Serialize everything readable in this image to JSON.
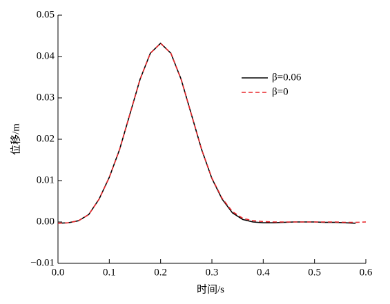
{
  "chart_data": {
    "type": "line",
    "xlabel": "时间/s",
    "ylabel": "位移/m",
    "x": [
      0,
      0.02,
      0.04,
      0.06,
      0.08,
      0.1,
      0.12,
      0.14,
      0.16,
      0.18,
      0.2,
      0.22,
      0.24,
      0.26,
      0.28,
      0.3,
      0.32,
      0.34,
      0.36,
      0.38,
      0.4,
      0.42,
      0.44,
      0.46,
      0.48,
      0.5,
      0.52,
      0.54,
      0.56,
      0.58,
      0.6
    ],
    "series": [
      {
        "name": "β=0.06",
        "color": "#000000",
        "linestyle": "solid",
        "values": [
          -0.0003,
          -0.0002,
          0.0003,
          0.0018,
          0.0055,
          0.0108,
          0.0175,
          0.026,
          0.0345,
          0.0408,
          0.0432,
          0.0408,
          0.0345,
          0.026,
          0.0175,
          0.0105,
          0.0055,
          0.0022,
          0.0006,
          0.0,
          -0.0002,
          -0.0002,
          -0.0001,
          0.0,
          0.0,
          0.0,
          -0.0001,
          -0.0001,
          -0.0002,
          -0.0003,
          null
        ]
      },
      {
        "name": "β=0",
        "color": "#e8262a",
        "linestyle": "dashed",
        "values": [
          -0.0003,
          -0.0002,
          0.0003,
          0.0018,
          0.0055,
          0.0108,
          0.0175,
          0.026,
          0.0345,
          0.0408,
          0.0432,
          0.0408,
          0.0345,
          0.026,
          0.0175,
          0.0106,
          0.0057,
          0.0025,
          0.0009,
          0.0003,
          0.0001,
          0.0,
          0.0,
          0.0,
          0.0,
          0.0,
          0.0,
          0.0,
          -0.0001,
          -0.0001,
          0.0
        ]
      }
    ],
    "xlim": [
      0,
      0.6
    ],
    "ylim": [
      -0.01,
      0.05
    ],
    "xticks": [
      {
        "value": 0,
        "label": "0.0"
      },
      0.1,
      0.2,
      0.3,
      0.4,
      0.5,
      0.6
    ],
    "yticks": [
      {
        "value": -0.01,
        "label": "−0.01"
      },
      {
        "value": 0,
        "label": "0.00"
      },
      0.01,
      0.02,
      0.03,
      0.04,
      0.05
    ],
    "grid": false
  }
}
